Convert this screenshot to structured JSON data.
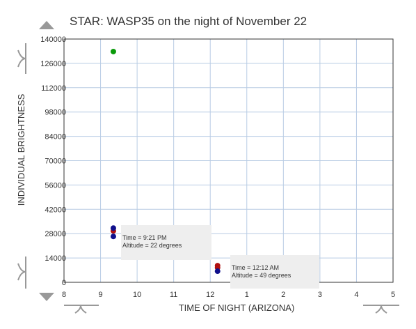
{
  "chart_data": {
    "type": "scatter",
    "title": "STAR: WASP35 on the night of November 22",
    "xlabel": "TIME OF NIGHT (ARIZONA)",
    "ylabel": "INDIVIDUAL BRIGHTNESS",
    "xlim": [
      8,
      17
    ],
    "xticks": [
      8,
      9,
      10,
      11,
      12,
      {
        "value": 13,
        "label": "1"
      },
      {
        "value": 14,
        "label": "2"
      },
      {
        "value": 15,
        "label": "3"
      },
      {
        "value": 16,
        "label": "4"
      },
      {
        "value": 17,
        "label": "5"
      }
    ],
    "ylim": [
      0,
      140000
    ],
    "yticks": [
      0,
      14000,
      28000,
      42000,
      56000,
      70000,
      84000,
      98000,
      112000,
      126000,
      140000
    ],
    "grid": true,
    "series": [
      {
        "color": "#0a9a0a",
        "x": [
          9.35
        ],
        "values": [
          132800
        ]
      },
      {
        "color": "#b01010",
        "x": [
          9.35,
          12.2,
          12.2
        ],
        "values": [
          29600,
          9600,
          8400
        ]
      },
      {
        "color": "#10108c",
        "x": [
          9.35,
          9.35,
          12.2
        ],
        "values": [
          31200,
          26400,
          6400
        ]
      }
    ],
    "annotations": [
      [
        "Time = 9:21 PM",
        "Altitude = 22 degrees"
      ],
      [
        "Time = 12:12 AM",
        "Altitude = 49 degrees"
      ]
    ]
  }
}
